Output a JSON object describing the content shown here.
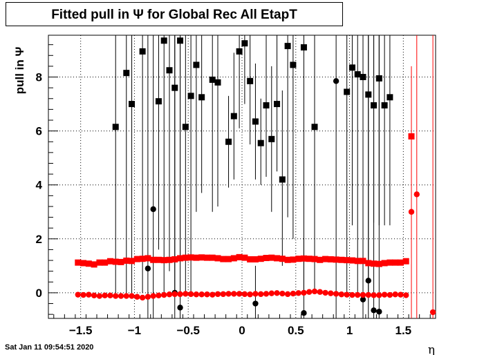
{
  "chart_data": {
    "type": "scatter",
    "title": "Fitted pull in  Ψ  for Global Rec All EtapT",
    "ylabel": "pull in  Ψ",
    "xlabel": "η",
    "xlim": [
      -1.8,
      1.8
    ],
    "ylim": [
      -0.95,
      9.55
    ],
    "xticks": [
      "−1.5",
      "−1",
      "−0.5",
      "0",
      "0.5",
      "1",
      "1.5"
    ],
    "yticks": [
      "0",
      "2",
      "4",
      "6",
      "8"
    ],
    "grid": true,
    "timestamp": "Sat Jan 11 09:54:51 2020",
    "series": [
      {
        "marker": "square",
        "color": "#000000",
        "points": [
          {
            "x": -1.175,
            "y": 6.15,
            "lo": 0.0,
            "hi": 9.55
          },
          {
            "x": -1.075,
            "y": 8.15,
            "lo": 0.0,
            "hi": 9.55
          },
          {
            "x": -1.025,
            "y": 7.0,
            "lo": 0.0,
            "hi": 9.55
          },
          {
            "x": -0.925,
            "y": 8.95,
            "lo": 0.0,
            "hi": 9.55
          },
          {
            "x": -0.775,
            "y": 7.1,
            "lo": 1.6,
            "hi": 9.55
          },
          {
            "x": -0.725,
            "y": 9.35,
            "lo": 0.0,
            "hi": 9.55
          },
          {
            "x": -0.675,
            "y": 8.25,
            "lo": 0.8,
            "hi": 9.55
          },
          {
            "x": -0.625,
            "y": 7.6,
            "lo": 0.0,
            "hi": 9.55
          },
          {
            "x": -0.575,
            "y": 9.35,
            "lo": 1.4,
            "hi": 9.55
          },
          {
            "x": -0.525,
            "y": 6.15,
            "lo": 0.0,
            "hi": 9.55
          },
          {
            "x": -0.475,
            "y": 7.3,
            "lo": 0.0,
            "hi": 9.55
          },
          {
            "x": -0.425,
            "y": 8.45,
            "lo": 3.0,
            "hi": 9.55
          },
          {
            "x": -0.375,
            "y": 7.25,
            "lo": 3.7,
            "hi": 9.55
          },
          {
            "x": -0.275,
            "y": 7.9,
            "lo": 3.0,
            "hi": 9.55
          },
          {
            "x": -0.225,
            "y": 7.8,
            "lo": 3.2,
            "hi": 9.55
          },
          {
            "x": -0.125,
            "y": 5.6,
            "lo": 3.9,
            "hi": 7.3
          },
          {
            "x": -0.075,
            "y": 6.55,
            "lo": 4.2,
            "hi": 8.9
          },
          {
            "x": -0.025,
            "y": 8.95,
            "lo": 6.1,
            "hi": 9.55
          },
          {
            "x": 0.025,
            "y": 9.25,
            "lo": 7.0,
            "hi": 9.55
          },
          {
            "x": 0.075,
            "y": 7.85,
            "lo": 5.5,
            "hi": 9.55
          },
          {
            "x": 0.125,
            "y": 6.35,
            "lo": 4.2,
            "hi": 8.5
          },
          {
            "x": 0.175,
            "y": 5.55,
            "lo": 4.0,
            "hi": 7.2
          },
          {
            "x": 0.225,
            "y": 6.95,
            "lo": 4.3,
            "hi": 9.55
          },
          {
            "x": 0.275,
            "y": 5.7,
            "lo": 3.0,
            "hi": 8.4
          },
          {
            "x": 0.325,
            "y": 7.0,
            "lo": 4.5,
            "hi": 9.55
          },
          {
            "x": 0.375,
            "y": 4.2,
            "lo": 1.0,
            "hi": 7.5
          },
          {
            "x": 0.425,
            "y": 9.15,
            "lo": 2.8,
            "hi": 9.55
          },
          {
            "x": 0.475,
            "y": 8.45,
            "lo": 2.0,
            "hi": 9.55
          },
          {
            "x": 0.575,
            "y": 9.1,
            "lo": 0.0,
            "hi": 9.55
          },
          {
            "x": 0.675,
            "y": 6.15,
            "lo": 0.0,
            "hi": 9.55
          },
          {
            "x": 0.975,
            "y": 7.45,
            "lo": 0.0,
            "hi": 9.55
          },
          {
            "x": 1.025,
            "y": 8.35,
            "lo": 2.5,
            "hi": 9.55
          },
          {
            "x": 1.075,
            "y": 8.1,
            "lo": 0.0,
            "hi": 9.55
          },
          {
            "x": 1.125,
            "y": 8.0,
            "lo": 0.0,
            "hi": 9.55
          },
          {
            "x": 1.175,
            "y": 7.35,
            "lo": 0.0,
            "hi": 9.55
          },
          {
            "x": 1.225,
            "y": 6.95,
            "lo": 2.6,
            "hi": 9.55
          },
          {
            "x": 1.275,
            "y": 7.95,
            "lo": 2.5,
            "hi": 9.55
          },
          {
            "x": 1.325,
            "y": 6.95,
            "lo": 2.5,
            "hi": 9.55
          },
          {
            "x": 1.375,
            "y": 7.25,
            "lo": 2.5,
            "hi": 9.55
          }
        ]
      },
      {
        "marker": "circle",
        "color": "#000000",
        "points": [
          {
            "x": -0.875,
            "y": 0.9,
            "lo": -0.95,
            "hi": 9.55
          },
          {
            "x": -0.825,
            "y": 3.1,
            "lo": -0.95,
            "hi": 9.55
          },
          {
            "x": -0.625,
            "y": 0.0,
            "lo": -0.95,
            "hi": 9.55
          },
          {
            "x": -0.575,
            "y": -0.55,
            "lo": -0.95,
            "hi": 9.55
          },
          {
            "x": 0.125,
            "y": -0.4,
            "lo": -0.95,
            "hi": 1.0
          },
          {
            "x": 0.575,
            "y": -0.75,
            "lo": -0.95,
            "hi": 2.0
          },
          {
            "x": 0.875,
            "y": 7.85,
            "lo": -0.95,
            "hi": 9.55
          },
          {
            "x": 1.125,
            "y": -0.25,
            "lo": -0.95,
            "hi": 9.55
          },
          {
            "x": 1.175,
            "y": 0.45,
            "lo": -0.95,
            "hi": 9.55
          },
          {
            "x": 1.225,
            "y": -0.65,
            "lo": -0.95,
            "hi": 9.55
          },
          {
            "x": 1.275,
            "y": -0.7,
            "lo": -0.95,
            "hi": 9.55
          }
        ]
      },
      {
        "marker": "square",
        "color": "#ff0000",
        "points": [
          {
            "x": -1.525,
            "y": 1.12
          },
          {
            "x": -1.475,
            "y": 1.1
          },
          {
            "x": -1.425,
            "y": 1.08
          },
          {
            "x": -1.375,
            "y": 1.05
          },
          {
            "x": -1.325,
            "y": 1.12
          },
          {
            "x": -1.275,
            "y": 1.12
          },
          {
            "x": -1.225,
            "y": 1.17
          },
          {
            "x": -1.175,
            "y": 1.15
          },
          {
            "x": -1.125,
            "y": 1.14
          },
          {
            "x": -1.075,
            "y": 1.19
          },
          {
            "x": -1.025,
            "y": 1.18
          },
          {
            "x": -0.975,
            "y": 1.25
          },
          {
            "x": -0.925,
            "y": 1.26
          },
          {
            "x": -0.875,
            "y": 1.28
          },
          {
            "x": -0.825,
            "y": 1.22
          },
          {
            "x": -0.775,
            "y": 1.22
          },
          {
            "x": -0.725,
            "y": 1.21
          },
          {
            "x": -0.675,
            "y": 1.22
          },
          {
            "x": -0.625,
            "y": 1.24
          },
          {
            "x": -0.575,
            "y": 1.28
          },
          {
            "x": -0.525,
            "y": 1.3
          },
          {
            "x": -0.475,
            "y": 1.31
          },
          {
            "x": -0.425,
            "y": 1.3
          },
          {
            "x": -0.375,
            "y": 1.31
          },
          {
            "x": -0.325,
            "y": 1.3
          },
          {
            "x": -0.275,
            "y": 1.3
          },
          {
            "x": -0.225,
            "y": 1.28
          },
          {
            "x": -0.175,
            "y": 1.25
          },
          {
            "x": -0.125,
            "y": 1.25
          },
          {
            "x": -0.075,
            "y": 1.28
          },
          {
            "x": -0.025,
            "y": 1.32
          },
          {
            "x": 0.025,
            "y": 1.3
          },
          {
            "x": 0.075,
            "y": 1.24
          },
          {
            "x": 0.125,
            "y": 1.24
          },
          {
            "x": 0.175,
            "y": 1.26
          },
          {
            "x": 0.225,
            "y": 1.29
          },
          {
            "x": 0.275,
            "y": 1.3
          },
          {
            "x": 0.325,
            "y": 1.28
          },
          {
            "x": 0.375,
            "y": 1.26
          },
          {
            "x": 0.425,
            "y": 1.22
          },
          {
            "x": 0.475,
            "y": 1.23
          },
          {
            "x": 0.525,
            "y": 1.26
          },
          {
            "x": 0.575,
            "y": 1.27
          },
          {
            "x": 0.625,
            "y": 1.26
          },
          {
            "x": 0.675,
            "y": 1.25
          },
          {
            "x": 0.725,
            "y": 1.22
          },
          {
            "x": 0.775,
            "y": 1.25
          },
          {
            "x": 0.825,
            "y": 1.24
          },
          {
            "x": 0.875,
            "y": 1.23
          },
          {
            "x": 0.925,
            "y": 1.22
          },
          {
            "x": 0.975,
            "y": 1.21
          },
          {
            "x": 1.025,
            "y": 1.2
          },
          {
            "x": 1.075,
            "y": 1.18
          },
          {
            "x": 1.125,
            "y": 1.18
          },
          {
            "x": 1.175,
            "y": 1.1
          },
          {
            "x": 1.225,
            "y": 1.08
          },
          {
            "x": 1.275,
            "y": 1.07
          },
          {
            "x": 1.325,
            "y": 1.1
          },
          {
            "x": 1.375,
            "y": 1.12
          },
          {
            "x": 1.425,
            "y": 1.12
          },
          {
            "x": 1.475,
            "y": 1.12
          },
          {
            "x": 1.525,
            "y": 1.17
          },
          {
            "x": 1.575,
            "y": 5.8,
            "lo": 3.5,
            "hi": 8.4
          }
        ]
      },
      {
        "marker": "circle",
        "color": "#ff0000",
        "points": [
          {
            "x": -1.525,
            "y": -0.07
          },
          {
            "x": -1.475,
            "y": -0.08
          },
          {
            "x": -1.425,
            "y": -0.07
          },
          {
            "x": -1.375,
            "y": -0.1
          },
          {
            "x": -1.325,
            "y": -0.12
          },
          {
            "x": -1.275,
            "y": -0.1
          },
          {
            "x": -1.225,
            "y": -0.1
          },
          {
            "x": -1.175,
            "y": -0.12
          },
          {
            "x": -1.125,
            "y": -0.12
          },
          {
            "x": -1.075,
            "y": -0.12
          },
          {
            "x": -1.025,
            "y": -0.12
          },
          {
            "x": -0.975,
            "y": -0.15
          },
          {
            "x": -0.925,
            "y": -0.18
          },
          {
            "x": -0.875,
            "y": -0.15
          },
          {
            "x": -0.825,
            "y": -0.12
          },
          {
            "x": -0.775,
            "y": -0.1
          },
          {
            "x": -0.725,
            "y": -0.08
          },
          {
            "x": -0.675,
            "y": -0.06
          },
          {
            "x": -0.625,
            "y": -0.05
          },
          {
            "x": -0.575,
            "y": -0.05
          },
          {
            "x": -0.525,
            "y": -0.04
          },
          {
            "x": -0.475,
            "y": -0.05
          },
          {
            "x": -0.425,
            "y": -0.06
          },
          {
            "x": -0.375,
            "y": -0.06
          },
          {
            "x": -0.325,
            "y": -0.06
          },
          {
            "x": -0.275,
            "y": -0.07
          },
          {
            "x": -0.225,
            "y": -0.05
          },
          {
            "x": -0.175,
            "y": -0.05
          },
          {
            "x": -0.125,
            "y": -0.04
          },
          {
            "x": -0.075,
            "y": -0.04
          },
          {
            "x": -0.025,
            "y": -0.04
          },
          {
            "x": 0.025,
            "y": -0.05
          },
          {
            "x": 0.075,
            "y": -0.06
          },
          {
            "x": 0.125,
            "y": -0.04
          },
          {
            "x": 0.175,
            "y": -0.05
          },
          {
            "x": 0.225,
            "y": -0.04
          },
          {
            "x": 0.275,
            "y": -0.02
          },
          {
            "x": 0.325,
            "y": -0.01
          },
          {
            "x": 0.375,
            "y": -0.03
          },
          {
            "x": 0.425,
            "y": -0.05
          },
          {
            "x": 0.475,
            "y": -0.03
          },
          {
            "x": 0.525,
            "y": -0.01
          },
          {
            "x": 0.575,
            "y": 0.0
          },
          {
            "x": 0.625,
            "y": 0.03
          },
          {
            "x": 0.675,
            "y": 0.05
          },
          {
            "x": 0.725,
            "y": 0.03
          },
          {
            "x": 0.775,
            "y": 0.0
          },
          {
            "x": 0.825,
            "y": -0.02
          },
          {
            "x": 0.875,
            "y": -0.04
          },
          {
            "x": 0.925,
            "y": -0.06
          },
          {
            "x": 0.975,
            "y": -0.07
          },
          {
            "x": 1.025,
            "y": -0.08
          },
          {
            "x": 1.075,
            "y": -0.08
          },
          {
            "x": 1.125,
            "y": -0.08
          },
          {
            "x": 1.175,
            "y": -0.08
          },
          {
            "x": 1.225,
            "y": -0.09
          },
          {
            "x": 1.275,
            "y": -0.09
          },
          {
            "x": 1.325,
            "y": -0.07
          },
          {
            "x": 1.375,
            "y": -0.08
          },
          {
            "x": 1.425,
            "y": -0.06
          },
          {
            "x": 1.475,
            "y": -0.07
          },
          {
            "x": 1.525,
            "y": -0.09
          },
          {
            "x": 1.575,
            "y": 3.0,
            "lo": -0.95,
            "hi": 7.8
          },
          {
            "x": 1.625,
            "y": 3.65,
            "lo": -0.95,
            "hi": 9.55
          },
          {
            "x": 1.775,
            "y": -0.72,
            "lo": -0.95,
            "hi": 9.55
          }
        ]
      }
    ]
  }
}
